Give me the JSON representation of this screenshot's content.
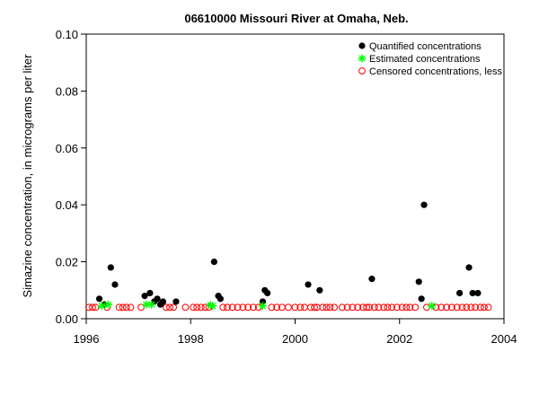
{
  "chart_data": {
    "type": "scatter",
    "title": "06610000 Missouri River at Omaha, Neb.",
    "xlabel": "",
    "ylabel": "Simazine concentration, in micrograms per liter",
    "xlim": [
      1996,
      2004
    ],
    "ylim": [
      0,
      0.1
    ],
    "x_ticks": [
      "1996",
      "1998",
      "2000",
      "2002",
      "2004"
    ],
    "y_ticks": [
      "0.00",
      "0.02",
      "0.04",
      "0.06",
      "0.08",
      "0.10"
    ],
    "legend_position": "top-right",
    "grid": false,
    "series": [
      {
        "name": "Quantified concentrations",
        "marker": "filled-circle",
        "color": "#000000",
        "points": [
          [
            1996.25,
            0.007
          ],
          [
            1996.35,
            0.005
          ],
          [
            1996.47,
            0.018
          ],
          [
            1996.55,
            0.012
          ],
          [
            1997.12,
            0.008
          ],
          [
            1997.22,
            0.009
          ],
          [
            1997.3,
            0.006
          ],
          [
            1997.36,
            0.007
          ],
          [
            1997.42,
            0.005
          ],
          [
            1997.47,
            0.006
          ],
          [
            1997.72,
            0.006
          ],
          [
            1998.45,
            0.02
          ],
          [
            1998.53,
            0.008
          ],
          [
            1998.57,
            0.007
          ],
          [
            1999.38,
            0.006
          ],
          [
            1999.42,
            0.01
          ],
          [
            1999.47,
            0.009
          ],
          [
            2000.25,
            0.012
          ],
          [
            2000.47,
            0.01
          ],
          [
            2001.47,
            0.014
          ],
          [
            2002.37,
            0.013
          ],
          [
            2002.42,
            0.007
          ],
          [
            2002.47,
            0.04
          ],
          [
            2003.15,
            0.009
          ],
          [
            2003.33,
            0.018
          ],
          [
            2003.4,
            0.009
          ],
          [
            2003.5,
            0.009
          ]
        ]
      },
      {
        "name": "Estimated concentrations",
        "marker": "asterisk",
        "color": "#00ff00",
        "points": [
          [
            1996.3,
            0.0045
          ],
          [
            1996.42,
            0.005
          ],
          [
            1997.15,
            0.005
          ],
          [
            1997.25,
            0.005
          ],
          [
            1998.38,
            0.0048
          ],
          [
            1998.42,
            0.0045
          ],
          [
            1999.38,
            0.0045
          ],
          [
            2002.62,
            0.0045
          ]
        ]
      },
      {
        "name": "Censored concentrations, less",
        "marker": "open-circle",
        "color": "#ff0000",
        "points": [
          [
            1996.05,
            0.004
          ],
          [
            1996.12,
            0.004
          ],
          [
            1996.18,
            0.004
          ],
          [
            1996.4,
            0.004
          ],
          [
            1996.63,
            0.004
          ],
          [
            1996.7,
            0.004
          ],
          [
            1996.77,
            0.004
          ],
          [
            1996.85,
            0.004
          ],
          [
            1997.05,
            0.004
          ],
          [
            1997.53,
            0.004
          ],
          [
            1997.6,
            0.004
          ],
          [
            1997.67,
            0.004
          ],
          [
            1997.9,
            0.004
          ],
          [
            1998.05,
            0.004
          ],
          [
            1998.12,
            0.004
          ],
          [
            1998.2,
            0.004
          ],
          [
            1998.28,
            0.004
          ],
          [
            1998.35,
            0.004
          ],
          [
            1998.62,
            0.004
          ],
          [
            1998.7,
            0.004
          ],
          [
            1998.8,
            0.004
          ],
          [
            1998.9,
            0.004
          ],
          [
            1999.0,
            0.004
          ],
          [
            1999.1,
            0.004
          ],
          [
            1999.2,
            0.004
          ],
          [
            1999.3,
            0.004
          ],
          [
            1999.55,
            0.004
          ],
          [
            1999.65,
            0.004
          ],
          [
            1999.75,
            0.004
          ],
          [
            1999.87,
            0.004
          ],
          [
            2000.0,
            0.004
          ],
          [
            2000.1,
            0.004
          ],
          [
            2000.18,
            0.004
          ],
          [
            2000.3,
            0.004
          ],
          [
            2000.37,
            0.004
          ],
          [
            2000.42,
            0.004
          ],
          [
            2000.53,
            0.004
          ],
          [
            2000.6,
            0.004
          ],
          [
            2000.67,
            0.004
          ],
          [
            2000.75,
            0.004
          ],
          [
            2000.9,
            0.004
          ],
          [
            2001.0,
            0.004
          ],
          [
            2001.1,
            0.004
          ],
          [
            2001.2,
            0.004
          ],
          [
            2001.3,
            0.004
          ],
          [
            2001.37,
            0.004
          ],
          [
            2001.42,
            0.004
          ],
          [
            2001.52,
            0.004
          ],
          [
            2001.6,
            0.004
          ],
          [
            2001.7,
            0.004
          ],
          [
            2001.77,
            0.004
          ],
          [
            2001.85,
            0.004
          ],
          [
            2001.95,
            0.004
          ],
          [
            2002.05,
            0.004
          ],
          [
            2002.13,
            0.004
          ],
          [
            2002.2,
            0.004
          ],
          [
            2002.3,
            0.004
          ],
          [
            2002.52,
            0.004
          ],
          [
            2002.7,
            0.004
          ],
          [
            2002.8,
            0.004
          ],
          [
            2002.9,
            0.004
          ],
          [
            2003.0,
            0.004
          ],
          [
            2003.1,
            0.004
          ],
          [
            2003.2,
            0.004
          ],
          [
            2003.28,
            0.004
          ],
          [
            2003.37,
            0.004
          ],
          [
            2003.45,
            0.004
          ],
          [
            2003.55,
            0.004
          ],
          [
            2003.62,
            0.004
          ],
          [
            2003.7,
            0.004
          ]
        ]
      }
    ]
  }
}
